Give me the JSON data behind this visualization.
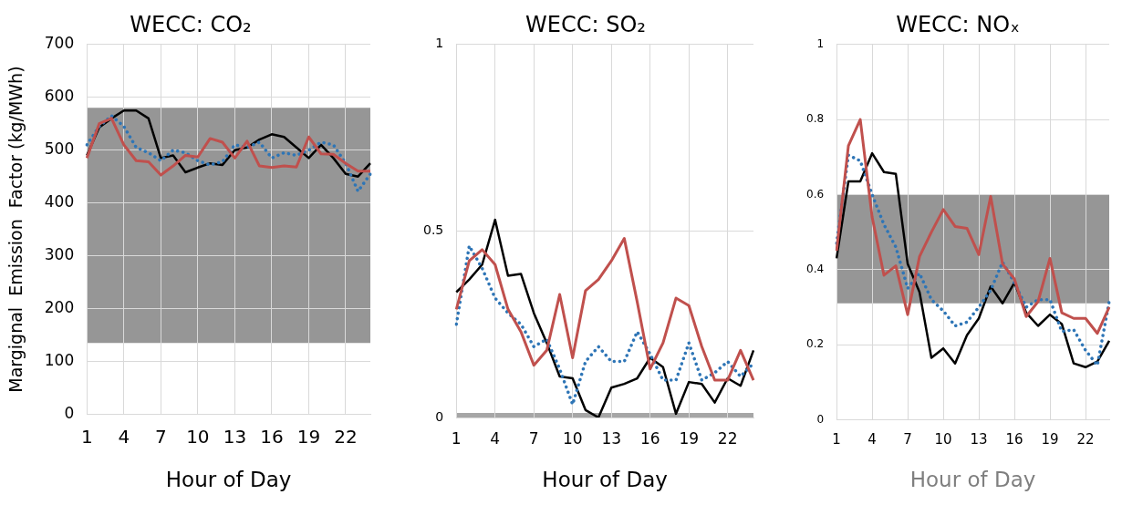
{
  "chart_data": [
    {
      "type": "line",
      "title": "WECC: CO₂",
      "xlabel": "Hour of Day",
      "ylabel": "Margignal  Emission  Factor (kg/MWh)",
      "categories": [
        "1",
        null,
        null,
        "4",
        null,
        null,
        "7",
        null,
        null,
        "10",
        null,
        null,
        "13",
        null,
        null,
        "16",
        null,
        null,
        "19",
        null,
        null,
        "22",
        null,
        null
      ],
      "series": [
        {
          "color": "#c0504d",
          "line_style": "solid",
          "values": [
            485,
            550,
            560,
            510,
            480,
            478,
            453,
            470,
            490,
            487,
            522,
            515,
            485,
            517,
            470,
            467,
            470,
            468,
            525,
            493,
            492,
            475,
            460,
            460
          ]
        },
        {
          "color": "#2e75b6",
          "line_style": "dotted",
          "values": [
            510,
            545,
            565,
            545,
            505,
            495,
            480,
            500,
            495,
            480,
            472,
            478,
            510,
            505,
            515,
            485,
            495,
            490,
            500,
            515,
            510,
            475,
            422,
            455
          ]
        },
        {
          "color": "#000000",
          "line_style": "solid",
          "values": [
            490,
            543,
            560,
            575,
            575,
            560,
            485,
            490,
            458,
            467,
            475,
            472,
            500,
            505,
            520,
            530,
            525,
            505,
            485,
            510,
            485,
            455,
            450,
            475
          ]
        }
      ],
      "ylim": [
        0,
        700
      ],
      "yticks": [
        0,
        100,
        200,
        300,
        400,
        500,
        600,
        700
      ],
      "grid": true,
      "marker": "none",
      "legend": false,
      "bands": [
        {
          "axis": "y",
          "from": 135,
          "to": 580,
          "color": "#969696"
        }
      ]
    },
    {
      "type": "line",
      "title": "WECC: SO₂",
      "xlabel": "Hour of Day",
      "categories": [
        "1",
        null,
        null,
        "4",
        null,
        null,
        "7",
        null,
        null,
        "10",
        null,
        null,
        "13",
        null,
        null,
        "16",
        null,
        null,
        "19",
        null,
        null,
        "22",
        null,
        null
      ],
      "series": [
        {
          "color": "#c0504d",
          "line_style": "solid",
          "values": [
            0.29,
            0.42,
            0.45,
            0.41,
            0.29,
            0.23,
            0.14,
            0.18,
            0.33,
            0.16,
            0.34,
            0.37,
            0.42,
            0.48,
            0.31,
            0.13,
            0.2,
            0.32,
            0.3,
            0.19,
            0.1,
            0.1,
            0.18,
            0.1
          ]
        },
        {
          "color": "#2e75b6",
          "line_style": "dotted",
          "values": [
            0.25,
            0.46,
            0.4,
            0.32,
            0.28,
            0.25,
            0.19,
            0.21,
            0.13,
            0.035,
            0.15,
            0.19,
            0.15,
            0.15,
            0.23,
            0.17,
            0.1,
            0.1,
            0.2,
            0.1,
            0.12,
            0.15,
            0.11,
            0.145
          ]
        },
        {
          "color": "#000000",
          "line_style": "solid",
          "values": [
            0.336,
            0.37,
            0.41,
            0.53,
            0.38,
            0.385,
            0.28,
            0.2,
            0.11,
            0.105,
            0.02,
            0,
            0.08,
            0.09,
            0.105,
            0.16,
            0.135,
            0.01,
            0.095,
            0.09,
            0.04,
            0.105,
            0.085,
            0.18
          ]
        }
      ],
      "ylim": [
        0,
        1
      ],
      "yticks": [
        0,
        0.5,
        1
      ],
      "grid": true,
      "marker": "none",
      "legend": false,
      "bands": [
        {
          "axis": "y",
          "from": 0,
          "to": 0.012,
          "color": "#a6a6a6"
        }
      ]
    },
    {
      "type": "line",
      "title": "WECC: NOₓ",
      "xlabel": "Hour of Day",
      "categories": [
        "1",
        null,
        null,
        "4",
        null,
        null,
        "7",
        null,
        null,
        "10",
        null,
        null,
        "13",
        null,
        null,
        "16",
        null,
        null,
        "19",
        null,
        null,
        "22",
        null,
        null
      ],
      "series": [
        {
          "color": "#c0504d",
          "line_style": "solid",
          "values": [
            0.45,
            0.73,
            0.8,
            0.54,
            0.385,
            0.41,
            0.28,
            0.435,
            0.5,
            0.56,
            0.515,
            0.51,
            0.44,
            0.595,
            0.415,
            0.375,
            0.275,
            0.315,
            0.43,
            0.285,
            0.27,
            0.27,
            0.23,
            0.3
          ]
        },
        {
          "color": "#2e75b6",
          "line_style": "dotted",
          "values": [
            0.47,
            0.705,
            0.69,
            0.6,
            0.52,
            0.46,
            0.35,
            0.39,
            0.32,
            0.29,
            0.25,
            0.26,
            0.3,
            0.345,
            0.42,
            0.365,
            0.3,
            0.32,
            0.32,
            0.235,
            0.24,
            0.185,
            0.145,
            0.315
          ]
        },
        {
          "color": "#000000",
          "line_style": "solid",
          "values": [
            0.43,
            0.635,
            0.635,
            0.71,
            0.66,
            0.655,
            0.415,
            0.34,
            0.165,
            0.19,
            0.15,
            0.225,
            0.27,
            0.355,
            0.31,
            0.365,
            0.285,
            0.25,
            0.28,
            0.255,
            0.15,
            0.14,
            0.155,
            0.21
          ]
        }
      ],
      "ylim": [
        0,
        1
      ],
      "yticks": [
        0,
        0.2,
        0.4,
        0.6,
        0.8,
        1
      ],
      "grid": true,
      "marker": "none",
      "legend": false,
      "bands": [
        {
          "axis": "y",
          "from": 0.31,
          "to": 0.6,
          "color": "#969696"
        }
      ]
    }
  ]
}
